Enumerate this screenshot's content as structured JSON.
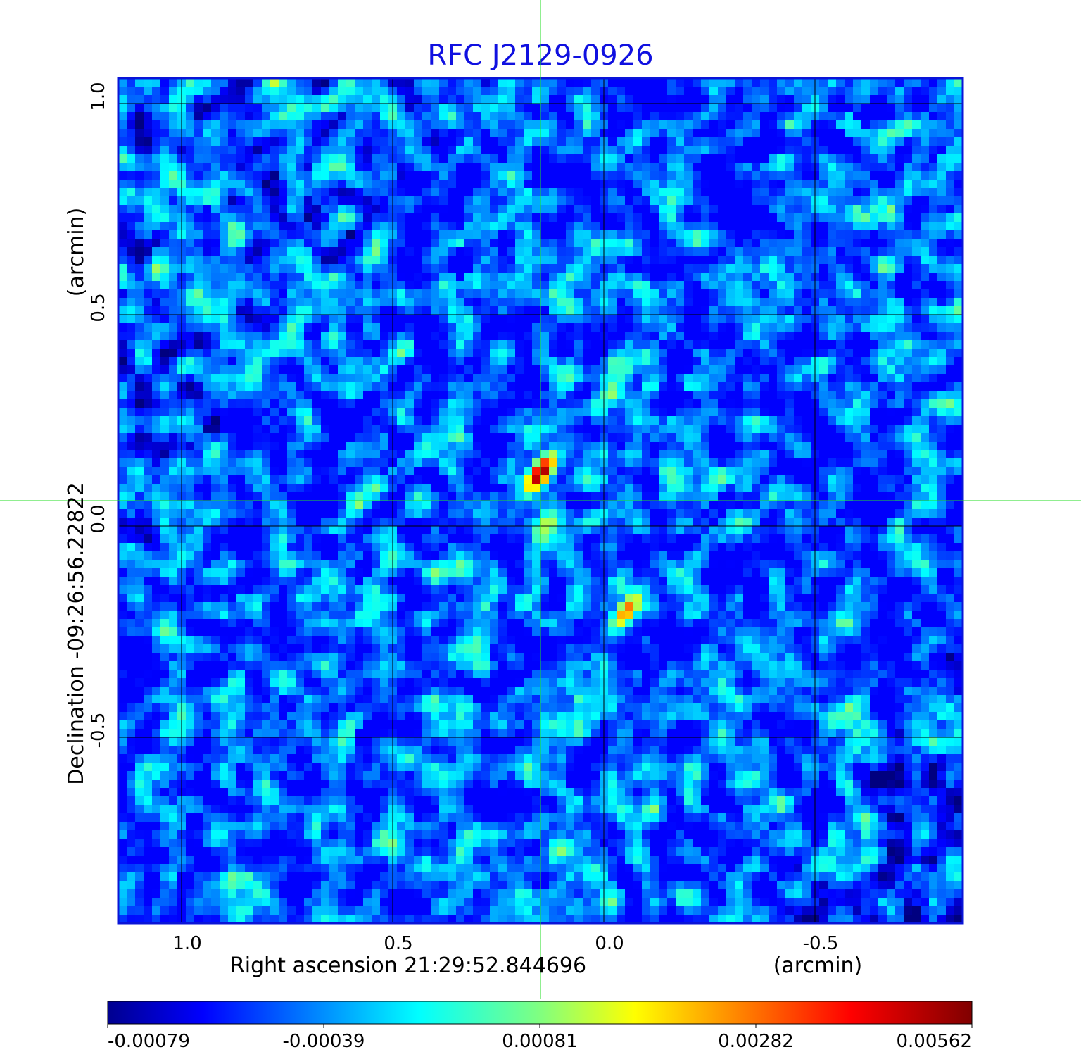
{
  "chart_data": {
    "type": "heatmap",
    "title": "RFC J2129-0926",
    "xlabel": "Right ascension  21:29:52.844696",
    "xunit": "(arcmin)",
    "ylabel": "Declination  -09:26:56.22822",
    "yunit": "(arcmin)",
    "xlim": [
      1.15,
      -0.85
    ],
    "ylim": [
      -0.94,
      1.06
    ],
    "x_ticks": [
      1.0,
      0.5,
      0.0,
      -0.5
    ],
    "x_tick_labels": [
      "1.0",
      "0.5",
      "0.0",
      "-0.5"
    ],
    "y_ticks": [
      1.0,
      0.5,
      0.0,
      -0.5
    ],
    "y_tick_labels": [
      "1.0",
      "0.5",
      "0.0",
      "-0.5"
    ],
    "grid": true,
    "colormap": "jet",
    "colorbar": {
      "tick_labels": [
        "-0.00079",
        "-0.00039",
        "0.00081",
        "0.00282",
        "0.00562"
      ],
      "min": -0.00079,
      "max": 0.00562
    },
    "sources": [
      {
        "x": 0.15,
        "y": 0.125,
        "peak": 0.00562
      },
      {
        "x": -0.055,
        "y": -0.2,
        "peak": 0.0042
      }
    ],
    "crosshair": {
      "x": 0.15,
      "y": 0.06
    }
  },
  "colors": {
    "frame": "#0a14d8",
    "crosshair": "#22dd22",
    "grid": "#000000",
    "title": "#1010e0"
  }
}
